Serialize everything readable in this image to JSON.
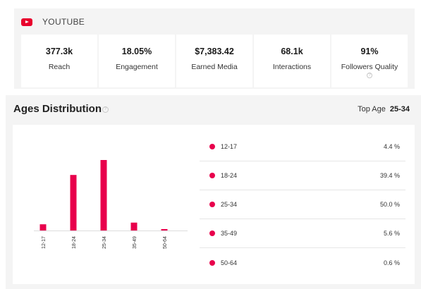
{
  "youtube": {
    "title": "YOUTUBE",
    "icon": "youtube-logo-icon",
    "stats": [
      {
        "value": "377.3k",
        "label": "Reach"
      },
      {
        "value": "18.05%",
        "label": "Engagement"
      },
      {
        "value": "$7,383.42",
        "label": "Earned Media"
      },
      {
        "value": "68.1k",
        "label": "Interactions"
      },
      {
        "value": "91%",
        "label": "Followers Quality"
      }
    ]
  },
  "ages": {
    "title": "Ages Distribution",
    "top_age_label": "Top Age",
    "top_age_value": "25-34",
    "accent_color": "#e8004c",
    "legend": [
      {
        "label": "12-17",
        "value": "4.4 %"
      },
      {
        "label": "18-24",
        "value": "39.4 %"
      },
      {
        "label": "25-34",
        "value": "50.0 %"
      },
      {
        "label": "35-49",
        "value": "5.6 %"
      },
      {
        "label": "50-64",
        "value": "0.6 %"
      }
    ]
  },
  "chart_data": {
    "type": "bar",
    "categories": [
      "12-17",
      "18-24",
      "25-34",
      "35-49",
      "50-64"
    ],
    "values": [
      4.4,
      39.4,
      50.0,
      5.6,
      0.6
    ],
    "title": "",
    "xlabel": "",
    "ylabel": "",
    "ylim": [
      0,
      50
    ],
    "grid": false,
    "color": "#e8004c"
  }
}
